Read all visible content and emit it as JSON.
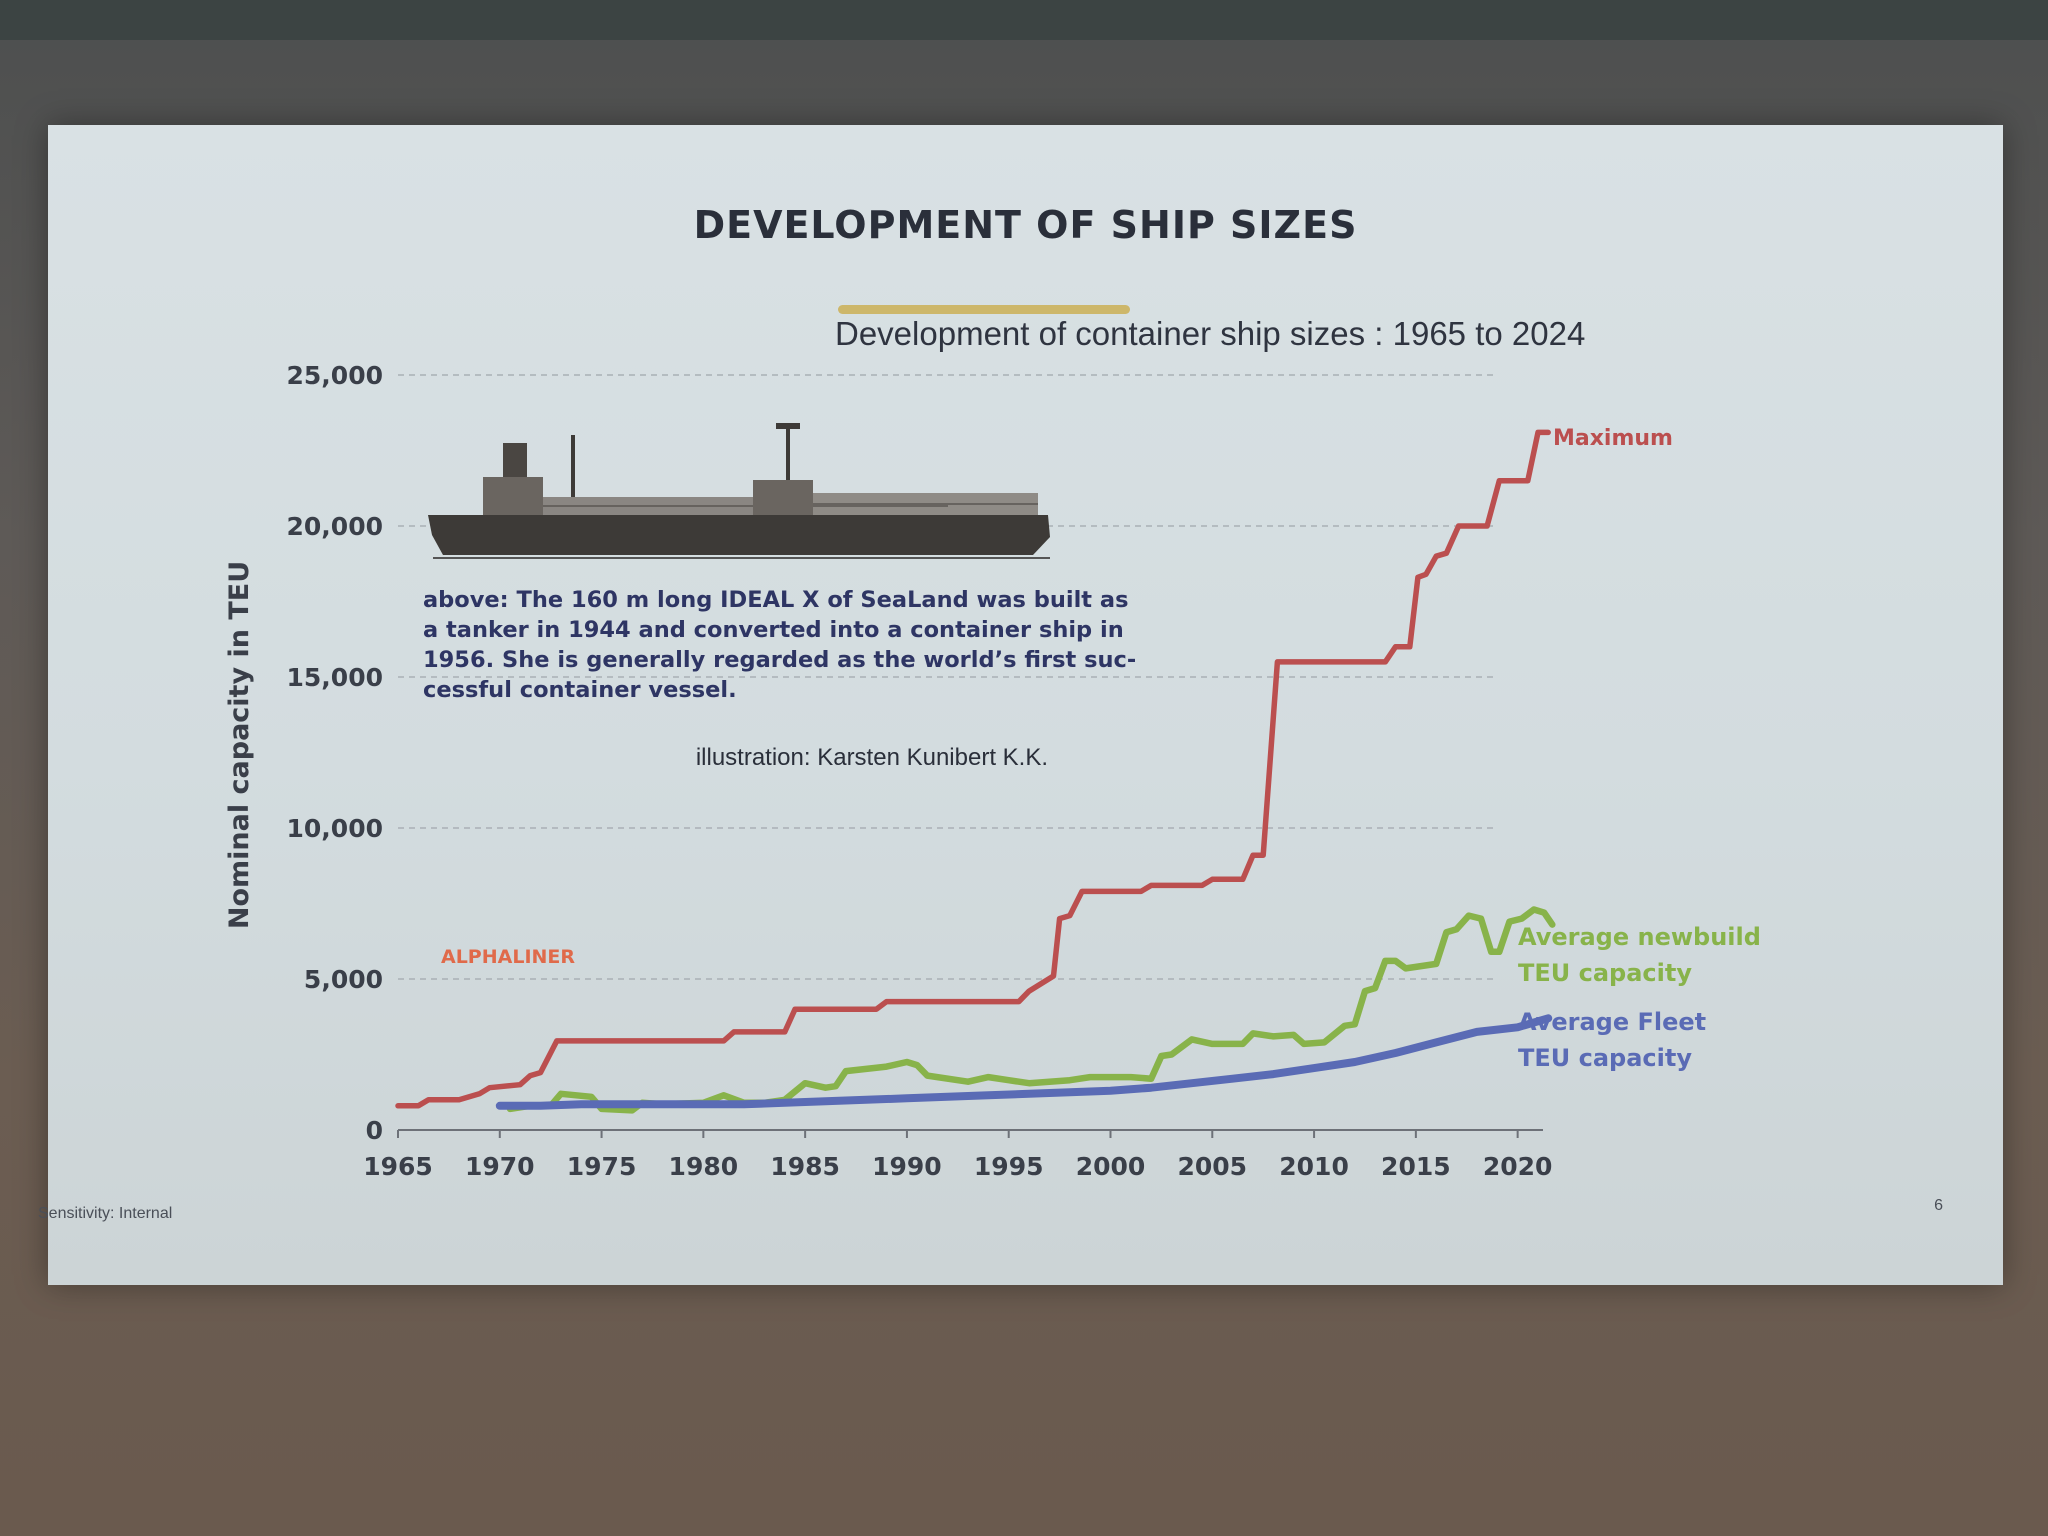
{
  "slide": {
    "title": "DEVELOPMENT OF SHIP SIZES",
    "sensitivity": "Sensitivity: Internal",
    "page_number": "6"
  },
  "caption": {
    "lines": [
      "above: The 160 m long IDEAL X of SeaLand was built as",
      "a tanker in 1944 and converted into a container ship in",
      "1956. She is generally regarded as the world’s first suc-",
      "cessful container vessel."
    ],
    "credit": "illustration: Karsten Kunibert K.K."
  },
  "brand": "ALPHALINER",
  "colors": {
    "maximum": "#bb4f4f",
    "newbuild": "#88b34a",
    "fleet": "#5a6bb5",
    "brand": "#e06a4a"
  },
  "chart_data": {
    "type": "line",
    "title": "Development of container ship sizes : 1965 to 2024",
    "ylabel": "Nominal capacity in TEU",
    "xlabel": "",
    "xlim": [
      1965,
      2021
    ],
    "ylim": [
      0,
      25000
    ],
    "x_ticks": [
      "1965",
      "1970",
      "1975",
      "1980",
      "1985",
      "1990",
      "1995",
      "2000",
      "2005",
      "2010",
      "2015",
      "2020"
    ],
    "y_ticks": [
      "0",
      "5,000",
      "10,000",
      "15,000",
      "20,000",
      "25,000"
    ],
    "grid": true,
    "series": [
      {
        "name": "Maximum",
        "color_key": "maximum",
        "points": [
          [
            1965,
            800
          ],
          [
            1966,
            800
          ],
          [
            1966.5,
            1000
          ],
          [
            1968,
            1000
          ],
          [
            1969,
            1200
          ],
          [
            1969.5,
            1400
          ],
          [
            1971,
            1500
          ],
          [
            1971.5,
            1800
          ],
          [
            1972,
            1900
          ],
          [
            1972.8,
            2950
          ],
          [
            1981,
            2950
          ],
          [
            1981.5,
            3250
          ],
          [
            1984,
            3250
          ],
          [
            1984.5,
            4000
          ],
          [
            1988.5,
            4000
          ],
          [
            1989,
            4250
          ],
          [
            1995.5,
            4250
          ],
          [
            1996,
            4600
          ],
          [
            1997.2,
            5100
          ],
          [
            1997.5,
            7000
          ],
          [
            1998,
            7100
          ],
          [
            1998.6,
            7900
          ],
          [
            2001.5,
            7900
          ],
          [
            2002,
            8100
          ],
          [
            2004.5,
            8100
          ],
          [
            2005,
            8300
          ],
          [
            2006.5,
            8300
          ],
          [
            2007,
            9100
          ],
          [
            2007.5,
            9100
          ],
          [
            2008.2,
            15500
          ],
          [
            2013.5,
            15500
          ],
          [
            2014,
            16000
          ],
          [
            2014.7,
            16000
          ],
          [
            2015.1,
            18300
          ],
          [
            2015.5,
            18400
          ],
          [
            2016,
            19000
          ],
          [
            2016.5,
            19100
          ],
          [
            2017.1,
            20000
          ],
          [
            2018.5,
            20000
          ],
          [
            2019.1,
            21500
          ],
          [
            2020.5,
            21500
          ],
          [
            2021,
            23100
          ],
          [
            2021.5,
            23100
          ]
        ]
      },
      {
        "name": "Average newbuild TEU capacity",
        "color_key": "newbuild",
        "points": [
          [
            1970.5,
            700
          ],
          [
            1971.5,
            800
          ],
          [
            1972.5,
            800
          ],
          [
            1973,
            1200
          ],
          [
            1974.5,
            1100
          ],
          [
            1975,
            700
          ],
          [
            1976.5,
            650
          ],
          [
            1977,
            900
          ],
          [
            1978,
            850
          ],
          [
            1980,
            900
          ],
          [
            1981,
            1150
          ],
          [
            1982,
            900
          ],
          [
            1983,
            900
          ],
          [
            1984,
            1000
          ],
          [
            1985,
            1550
          ],
          [
            1986,
            1400
          ],
          [
            1986.5,
            1450
          ],
          [
            1987,
            1950
          ],
          [
            1989,
            2100
          ],
          [
            1990,
            2250
          ],
          [
            1990.5,
            2150
          ],
          [
            1991,
            1800
          ],
          [
            1993,
            1600
          ],
          [
            1994,
            1750
          ],
          [
            1995,
            1650
          ],
          [
            1996,
            1550
          ],
          [
            1998,
            1650
          ],
          [
            1999,
            1750
          ],
          [
            2001,
            1750
          ],
          [
            2002,
            1700
          ],
          [
            2002.5,
            2450
          ],
          [
            2003,
            2500
          ],
          [
            2004,
            3000
          ],
          [
            2005,
            2850
          ],
          [
            2006.5,
            2850
          ],
          [
            2007,
            3200
          ],
          [
            2008,
            3100
          ],
          [
            2009,
            3150
          ],
          [
            2009.5,
            2850
          ],
          [
            2010.5,
            2900
          ],
          [
            2011.5,
            3450
          ],
          [
            2012,
            3500
          ],
          [
            2012.5,
            4600
          ],
          [
            2013,
            4700
          ],
          [
            2013.5,
            5600
          ],
          [
            2014,
            5600
          ],
          [
            2014.5,
            5350
          ],
          [
            2015,
            5400
          ],
          [
            2016,
            5500
          ],
          [
            2016.5,
            6550
          ],
          [
            2017,
            6650
          ],
          [
            2017.6,
            7100
          ],
          [
            2018.2,
            7000
          ],
          [
            2018.7,
            5900
          ],
          [
            2019.1,
            5900
          ],
          [
            2019.6,
            6900
          ],
          [
            2020.2,
            7000
          ],
          [
            2020.8,
            7300
          ],
          [
            2021.3,
            7200
          ],
          [
            2021.7,
            6800
          ]
        ]
      },
      {
        "name": "Average Fleet TEU capacity",
        "color_key": "fleet",
        "points": [
          [
            1970,
            800
          ],
          [
            1972,
            800
          ],
          [
            1974,
            850
          ],
          [
            1976,
            850
          ],
          [
            1978,
            850
          ],
          [
            1980,
            850
          ],
          [
            1982,
            850
          ],
          [
            1984,
            900
          ],
          [
            1986,
            950
          ],
          [
            1988,
            1000
          ],
          [
            1990,
            1050
          ],
          [
            1992,
            1100
          ],
          [
            1994,
            1150
          ],
          [
            1996,
            1200
          ],
          [
            1998,
            1250
          ],
          [
            2000,
            1300
          ],
          [
            2002,
            1400
          ],
          [
            2004,
            1550
          ],
          [
            2006,
            1700
          ],
          [
            2008,
            1850
          ],
          [
            2010,
            2050
          ],
          [
            2012,
            2250
          ],
          [
            2014,
            2550
          ],
          [
            2016,
            2900
          ],
          [
            2018,
            3250
          ],
          [
            2020,
            3400
          ],
          [
            2021.5,
            3700
          ]
        ]
      }
    ],
    "series_labels": {
      "maximum": [
        "Maximum"
      ],
      "newbuild": [
        "Average newbuild",
        "TEU capacity"
      ],
      "fleet": [
        "Average Fleet",
        "TEU capacity"
      ]
    }
  }
}
